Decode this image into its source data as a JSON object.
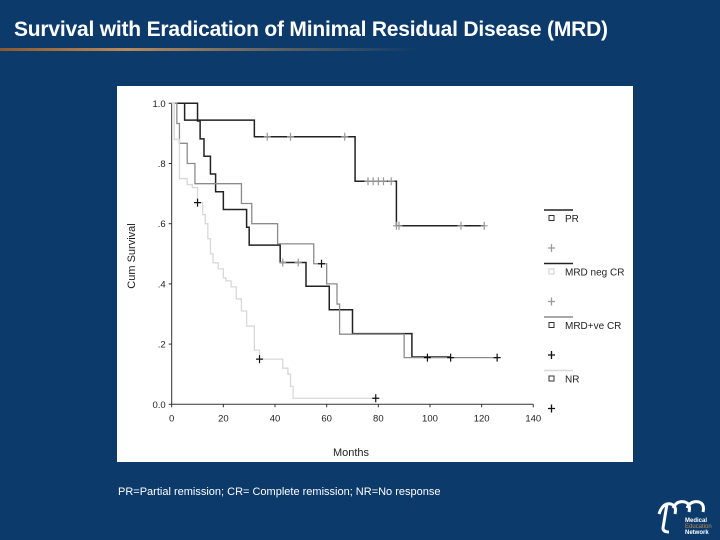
{
  "slide": {
    "title": "Survival with Eradication of Minimal Residual Disease (MRD)",
    "footnote": "PR=Partial remission; CR= Complete remission; NR=No response",
    "logo_text": [
      "Medical",
      "Education",
      "Network"
    ]
  },
  "colors": {
    "background": "#0b3a6b",
    "accent_rule": "#b88a5a"
  },
  "chart_data": {
    "type": "line",
    "subtype": "kaplan-meier step",
    "xlabel": "Months",
    "ylabel": "Cum Survival",
    "xlim": [
      0,
      140
    ],
    "ylim": [
      0,
      1
    ],
    "x_ticks": [
      "0",
      "20",
      "40",
      "60",
      "80",
      "100",
      "120",
      "140"
    ],
    "x_tick_values": [
      0,
      20,
      40,
      60,
      80,
      100,
      120,
      140
    ],
    "y_ticks": [
      "0.0",
      ".2",
      ".4",
      ".6",
      ".8",
      "1.0"
    ],
    "y_tick_values": [
      0,
      0.2,
      0.4,
      0.6,
      0.8,
      1.0
    ],
    "grid": false,
    "legend_position": "right",
    "series": [
      {
        "name": "PR",
        "color": "#222222",
        "censor_color": "#999999",
        "steps": [
          [
            0,
            1.0
          ],
          [
            5,
            0.944
          ],
          [
            32,
            0.889
          ],
          [
            71,
            0.741
          ],
          [
            87,
            0.593
          ],
          [
            121,
            0.593
          ]
        ],
        "censored": [
          37,
          46,
          67,
          76,
          78,
          80,
          82,
          85,
          87,
          88,
          112,
          121
        ]
      },
      {
        "name": "MRD neg CR",
        "color": "#222222",
        "censor_color": "#999999",
        "steps": [
          [
            0,
            1.0
          ],
          [
            10,
            0.941
          ],
          [
            11,
            0.882
          ],
          [
            12.5,
            0.824
          ],
          [
            15,
            0.765
          ],
          [
            17,
            0.706
          ],
          [
            20,
            0.647
          ],
          [
            29,
            0.588
          ],
          [
            30,
            0.529
          ],
          [
            42,
            0.471
          ],
          [
            52,
            0.392
          ],
          [
            61,
            0.314
          ],
          [
            70,
            0.235
          ],
          [
            93,
            0.157
          ],
          [
            108,
            0.157
          ]
        ],
        "censored": [
          43,
          49
        ]
      },
      {
        "name": "MRD+ve CR",
        "color": "#8c8c8c",
        "censor_color": "#111111",
        "steps": [
          [
            0,
            1.0
          ],
          [
            2,
            0.933
          ],
          [
            3,
            0.867
          ],
          [
            6,
            0.8
          ],
          [
            9,
            0.733
          ],
          [
            27,
            0.667
          ],
          [
            31,
            0.6
          ],
          [
            41,
            0.533
          ],
          [
            55,
            0.467
          ],
          [
            60,
            0.4
          ],
          [
            64,
            0.333
          ],
          [
            65,
            0.233
          ],
          [
            90,
            0.155
          ],
          [
            126,
            0.155
          ]
        ],
        "censored": [
          58,
          99,
          108,
          126
        ]
      },
      {
        "name": "NR",
        "color": "#d8d8d8",
        "censor_color": "#111111",
        "steps": [
          [
            0,
            1.0
          ],
          [
            1,
            0.88
          ],
          [
            3,
            0.75
          ],
          [
            6,
            0.73
          ],
          [
            8,
            0.72
          ],
          [
            10,
            0.67
          ],
          [
            12,
            0.63
          ],
          [
            13,
            0.6
          ],
          [
            14,
            0.55
          ],
          [
            15,
            0.5
          ],
          [
            16,
            0.47
          ],
          [
            18,
            0.45
          ],
          [
            20,
            0.42
          ],
          [
            21,
            0.41
          ],
          [
            23,
            0.39
          ],
          [
            25,
            0.35
          ],
          [
            27,
            0.31
          ],
          [
            29,
            0.26
          ],
          [
            32,
            0.18
          ],
          [
            34,
            0.15
          ],
          [
            43,
            0.12
          ],
          [
            45,
            0.1
          ],
          [
            46,
            0.06
          ],
          [
            47,
            0.02
          ],
          [
            79,
            0.02
          ]
        ],
        "censored": [
          10,
          34,
          79
        ]
      }
    ]
  }
}
